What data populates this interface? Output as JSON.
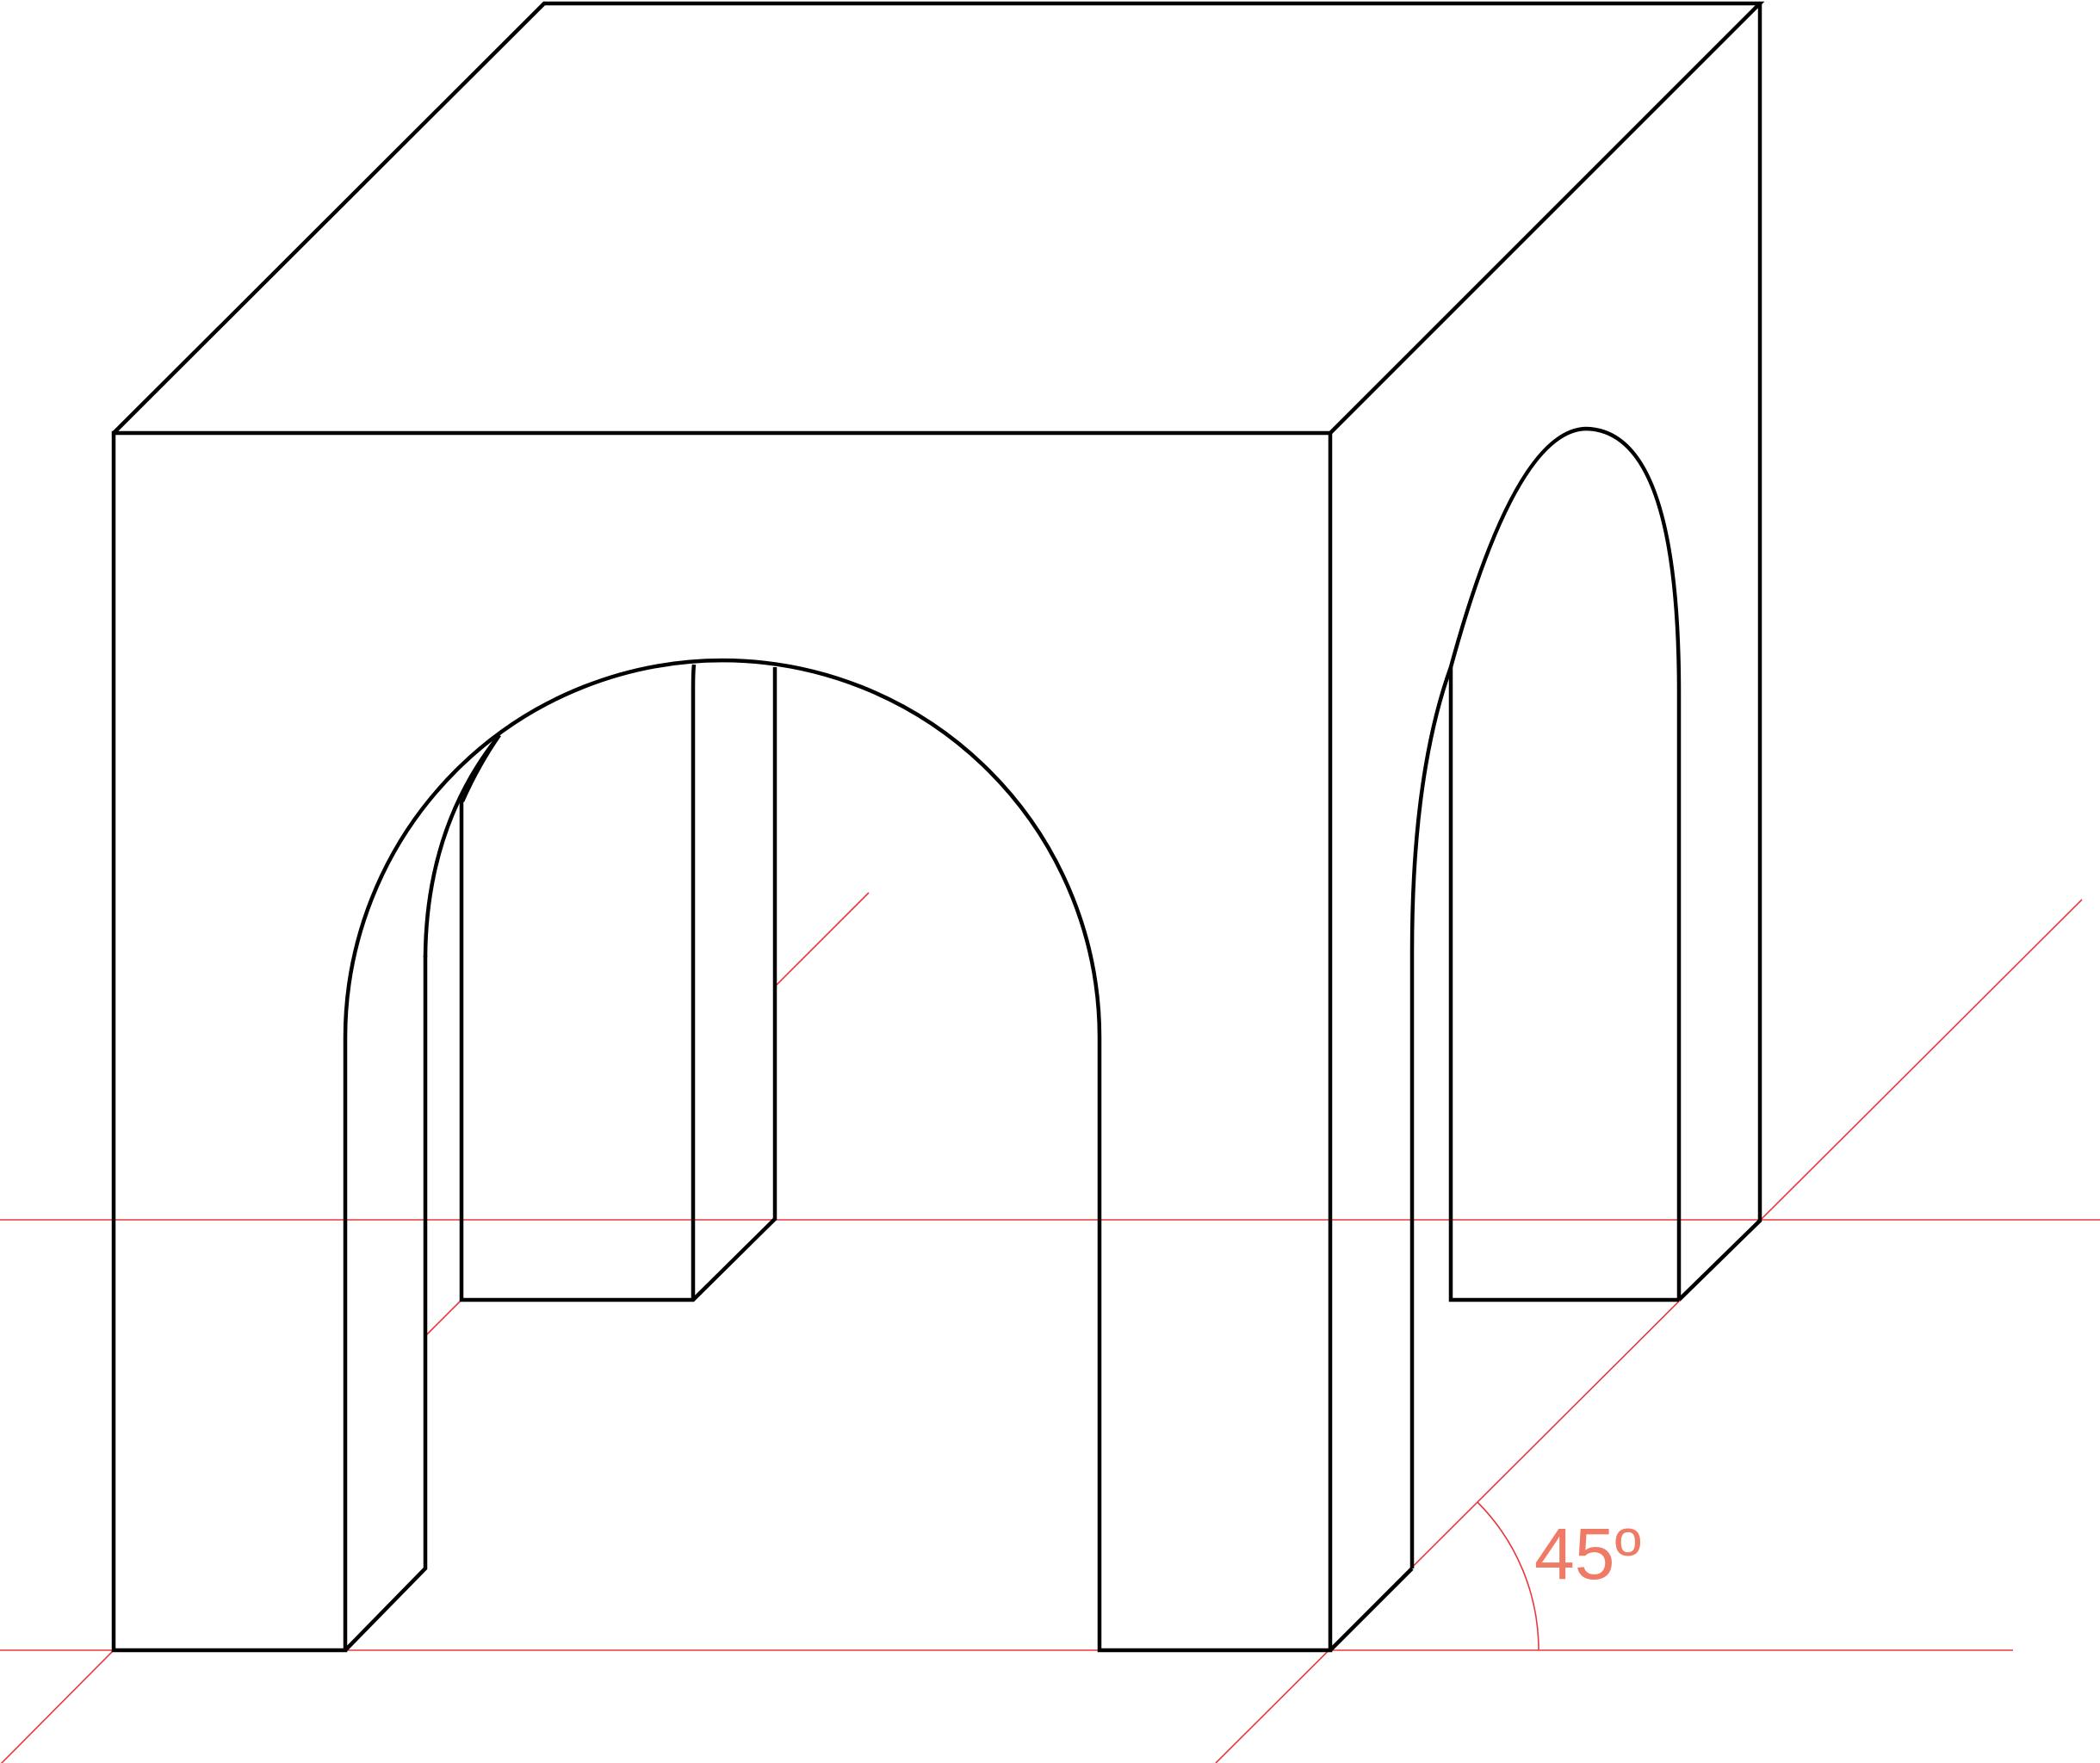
{
  "angle_annotation": {
    "label": "45º"
  },
  "colors": {
    "background": "#ffffff",
    "line": "#000000",
    "guide": "#e8383d",
    "label": "#ef7b66"
  }
}
